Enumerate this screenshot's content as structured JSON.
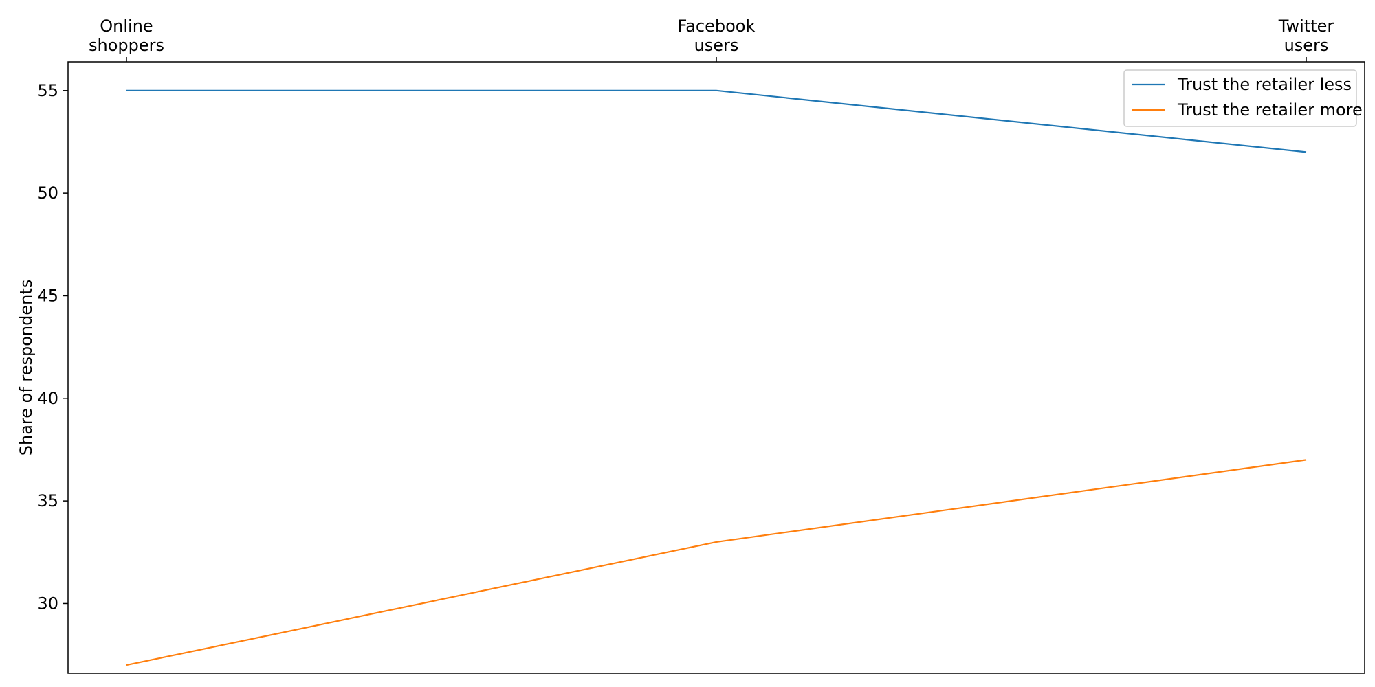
{
  "chart_data": {
    "type": "line",
    "categories": [
      [
        "Online",
        "shoppers"
      ],
      [
        "Facebook",
        "users"
      ],
      [
        "Twitter",
        "users"
      ]
    ],
    "series": [
      {
        "name": "Trust the retailer less",
        "values": [
          55,
          55,
          52
        ],
        "color": "#1f77b4"
      },
      {
        "name": "Trust the retailer more",
        "values": [
          27,
          33,
          37
        ],
        "color": "#ff7f0e"
      }
    ],
    "xaxis_position": "top",
    "ylabel": "Share of respondents",
    "yticks": [
      30,
      35,
      40,
      45,
      50,
      55
    ],
    "ylim": [
      26.6,
      56.4
    ],
    "grid": false,
    "legend_position": "top-right"
  }
}
